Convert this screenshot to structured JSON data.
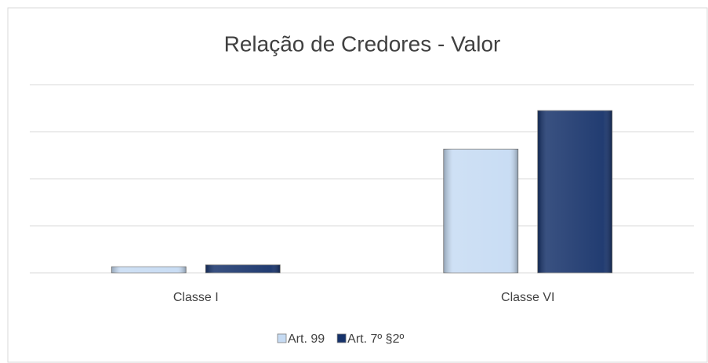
{
  "chart_data": {
    "type": "bar",
    "title": "Relação de Credores - Valor",
    "categories": [
      "Classe I",
      "Classe VI"
    ],
    "series": [
      {
        "name": "Art. 99",
        "color": "#c6dbf3",
        "values": [
          0.13,
          2.63
        ]
      },
      {
        "name": "Art. 7º §2º",
        "color": "#16326a",
        "values": [
          0.17,
          3.45
        ]
      }
    ],
    "ylim": [
      0,
      4
    ],
    "yticks": [
      0,
      1,
      2,
      3,
      4
    ],
    "grid": true,
    "legend": "bottom"
  }
}
